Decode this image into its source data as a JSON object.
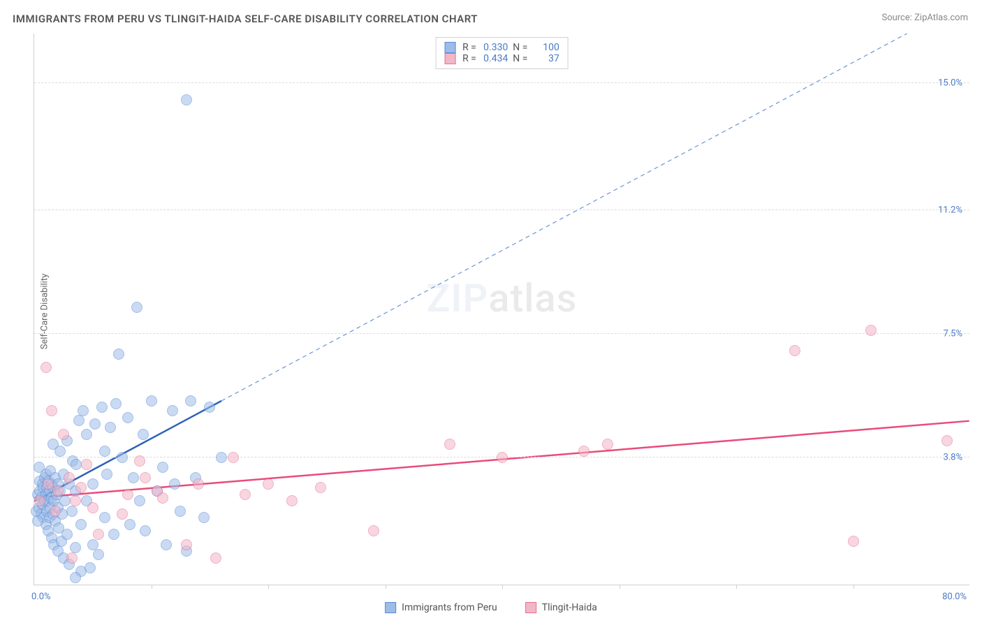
{
  "title": "IMMIGRANTS FROM PERU VS TLINGIT-HAIDA SELF-CARE DISABILITY CORRELATION CHART",
  "source_prefix": "Source: ",
  "source_name": "ZipAtlas.com",
  "ylabel": "Self-Care Disability",
  "watermark_part1": "ZIP",
  "watermark_part2": "atlas",
  "chart": {
    "type": "scatter",
    "xlim": [
      0,
      80
    ],
    "ylim": [
      0,
      16.5
    ],
    "background_color": "#ffffff",
    "grid_color": "#dcdcdc",
    "axis_color": "#d0d0d0",
    "x_origin_label": "0.0%",
    "x_max_label": "80.0%",
    "y_ticks": [
      {
        "value": 3.8,
        "label": "3.8%"
      },
      {
        "value": 7.5,
        "label": "7.5%"
      },
      {
        "value": 11.2,
        "label": "11.2%"
      },
      {
        "value": 15.0,
        "label": "15.0%"
      }
    ],
    "x_minor_ticks": [
      10,
      20,
      30,
      40,
      50,
      60,
      70
    ],
    "tick_label_color": "#4a7ac7",
    "tick_label_fontsize": 13,
    "point_radius": 8,
    "point_opacity": 0.55,
    "series": [
      {
        "name": "Immigrants from Peru",
        "fill_color": "#9dbce8",
        "stroke_color": "#5a8cd6",
        "R": "0.330",
        "N": "100",
        "trend": {
          "solid_color": "#2e62b8",
          "solid_width": 2.5,
          "dash_color": "#6a93d6",
          "dash_width": 1.2,
          "x1": 0,
          "y1": 2.5,
          "x_solid_end": 16,
          "y_solid_end": 5.5,
          "x2": 80,
          "y2": 17.5
        },
        "points": [
          [
            0.2,
            2.2
          ],
          [
            0.3,
            2.7
          ],
          [
            0.4,
            2.3
          ],
          [
            0.5,
            2.8
          ],
          [
            0.5,
            3.1
          ],
          [
            0.6,
            2.1
          ],
          [
            0.6,
            2.6
          ],
          [
            0.7,
            3.0
          ],
          [
            0.7,
            2.4
          ],
          [
            0.8,
            2.0
          ],
          [
            0.8,
            2.9
          ],
          [
            0.9,
            2.5
          ],
          [
            0.9,
            3.2
          ],
          [
            1.0,
            1.8
          ],
          [
            1.0,
            2.7
          ],
          [
            1.0,
            3.3
          ],
          [
            1.1,
            2.2
          ],
          [
            1.1,
            2.9
          ],
          [
            1.2,
            1.6
          ],
          [
            1.2,
            2.5
          ],
          [
            1.2,
            3.1
          ],
          [
            1.3,
            2.0
          ],
          [
            1.3,
            2.8
          ],
          [
            1.4,
            2.3
          ],
          [
            1.4,
            3.4
          ],
          [
            1.5,
            1.4
          ],
          [
            1.5,
            2.6
          ],
          [
            1.5,
            3.0
          ],
          [
            1.6,
            2.1
          ],
          [
            1.6,
            2.9
          ],
          [
            1.7,
            1.2
          ],
          [
            1.7,
            2.5
          ],
          [
            1.8,
            3.2
          ],
          [
            1.8,
            1.9
          ],
          [
            1.9,
            2.7
          ],
          [
            2.0,
            1.0
          ],
          [
            2.0,
            2.3
          ],
          [
            2.0,
            3.0
          ],
          [
            2.1,
            1.7
          ],
          [
            2.2,
            2.8
          ],
          [
            2.3,
            1.3
          ],
          [
            2.4,
            2.1
          ],
          [
            2.5,
            3.3
          ],
          [
            2.5,
            0.8
          ],
          [
            2.6,
            2.5
          ],
          [
            2.8,
            1.5
          ],
          [
            3.0,
            3.0
          ],
          [
            3.0,
            0.6
          ],
          [
            3.2,
            2.2
          ],
          [
            3.3,
            3.7
          ],
          [
            3.5,
            1.1
          ],
          [
            3.5,
            2.8
          ],
          [
            3.8,
            4.9
          ],
          [
            4.0,
            1.8
          ],
          [
            4.0,
            0.4
          ],
          [
            4.2,
            5.2
          ],
          [
            4.5,
            4.5
          ],
          [
            4.5,
            2.5
          ],
          [
            5.0,
            3.0
          ],
          [
            5.0,
            1.2
          ],
          [
            5.2,
            4.8
          ],
          [
            5.5,
            0.9
          ],
          [
            5.8,
            5.3
          ],
          [
            6.0,
            2.0
          ],
          [
            6.2,
            3.3
          ],
          [
            6.5,
            4.7
          ],
          [
            6.8,
            1.5
          ],
          [
            7.0,
            5.4
          ],
          [
            7.2,
            6.9
          ],
          [
            7.5,
            3.8
          ],
          [
            8.0,
            5.0
          ],
          [
            8.2,
            1.8
          ],
          [
            8.5,
            3.2
          ],
          [
            8.8,
            8.3
          ],
          [
            9.0,
            2.5
          ],
          [
            9.3,
            4.5
          ],
          [
            9.5,
            1.6
          ],
          [
            10.0,
            5.5
          ],
          [
            10.5,
            2.8
          ],
          [
            11.0,
            3.5
          ],
          [
            11.3,
            1.2
          ],
          [
            11.8,
            5.2
          ],
          [
            12.0,
            3.0
          ],
          [
            12.5,
            2.2
          ],
          [
            13.0,
            1.0
          ],
          [
            13.0,
            14.5
          ],
          [
            13.4,
            5.5
          ],
          [
            13.8,
            3.2
          ],
          [
            14.5,
            2.0
          ],
          [
            15.0,
            5.3
          ],
          [
            16.0,
            3.8
          ],
          [
            3.5,
            0.2
          ],
          [
            4.8,
            0.5
          ],
          [
            2.8,
            4.3
          ],
          [
            3.6,
            3.6
          ],
          [
            6.0,
            4.0
          ],
          [
            1.6,
            4.2
          ],
          [
            2.2,
            4.0
          ],
          [
            0.4,
            3.5
          ],
          [
            0.3,
            1.9
          ]
        ]
      },
      {
        "name": "Tlingit-Haida",
        "fill_color": "#f3b6c7",
        "stroke_color": "#e86f94",
        "R": "0.434",
        "N": "37",
        "trend": {
          "solid_color": "#e94b7a",
          "solid_width": 2.5,
          "x1": 0,
          "y1": 2.6,
          "x2": 80,
          "y2": 4.9
        },
        "points": [
          [
            0.5,
            2.5
          ],
          [
            1.0,
            6.5
          ],
          [
            1.2,
            3.0
          ],
          [
            1.5,
            5.2
          ],
          [
            1.8,
            2.2
          ],
          [
            2.0,
            2.8
          ],
          [
            2.5,
            4.5
          ],
          [
            3.0,
            3.2
          ],
          [
            3.2,
            0.8
          ],
          [
            3.5,
            2.5
          ],
          [
            4.0,
            2.9
          ],
          [
            4.5,
            3.6
          ],
          [
            5.0,
            2.3
          ],
          [
            5.5,
            1.5
          ],
          [
            7.5,
            2.1
          ],
          [
            8.0,
            2.7
          ],
          [
            9.0,
            3.7
          ],
          [
            9.5,
            3.2
          ],
          [
            10.5,
            2.8
          ],
          [
            11.0,
            2.6
          ],
          [
            13.0,
            1.2
          ],
          [
            14.0,
            3.0
          ],
          [
            15.5,
            0.8
          ],
          [
            17.0,
            3.8
          ],
          [
            18.0,
            2.7
          ],
          [
            20.0,
            3.0
          ],
          [
            22.0,
            2.5
          ],
          [
            24.5,
            2.9
          ],
          [
            29.0,
            1.6
          ],
          [
            35.5,
            4.2
          ],
          [
            40.0,
            3.8
          ],
          [
            47.0,
            4.0
          ],
          [
            49.0,
            4.2
          ],
          [
            65.0,
            7.0
          ],
          [
            70.0,
            1.3
          ],
          [
            71.5,
            7.6
          ],
          [
            78.0,
            4.3
          ]
        ]
      }
    ]
  },
  "legend_bottom": [
    {
      "label": "Immigrants from Peru",
      "fill": "#9dbce8",
      "stroke": "#5a8cd6"
    },
    {
      "label": "Tlingit-Haida",
      "fill": "#f3b6c7",
      "stroke": "#e86f94"
    }
  ]
}
